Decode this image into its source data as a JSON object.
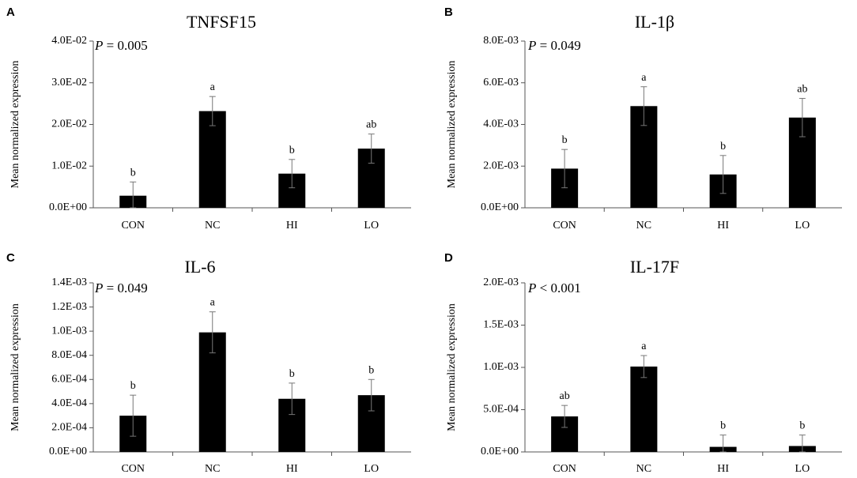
{
  "chart_data": [
    {
      "type": "bar",
      "panel": "A",
      "title": "TNFSF15",
      "pvalue": {
        "symbol": "P",
        "text": " = 0.005"
      },
      "ylabel": "Mean normalized expression",
      "categories": [
        "CON",
        "NC",
        "HI",
        "LO"
      ],
      "values": [
        0.0029,
        0.0232,
        0.0082,
        0.0142
      ],
      "errors": [
        0.0033,
        0.0035,
        0.0034,
        0.0035
      ],
      "significance": [
        "b",
        "a",
        "b",
        "ab"
      ],
      "ylim": [
        0,
        0.04
      ],
      "yticks": [
        0,
        0.01,
        0.02,
        0.03,
        0.04
      ],
      "ytick_labels": [
        "0.0E+00",
        "1.0E-02",
        "2.0E-02",
        "3.0E-02",
        "4.0E-02"
      ]
    },
    {
      "type": "bar",
      "panel": "B",
      "title": "IL-1β",
      "pvalue": {
        "symbol": "P",
        "text": " = 0.049"
      },
      "ylabel": "Mean normalized expression",
      "categories": [
        "CON",
        "NC",
        "HI",
        "LO"
      ],
      "values": [
        0.00188,
        0.00488,
        0.0016,
        0.00433
      ],
      "errors": [
        0.00092,
        0.00093,
        0.00091,
        0.00092
      ],
      "significance": [
        "b",
        "a",
        "b",
        "ab"
      ],
      "ylim": [
        0,
        0.008
      ],
      "yticks": [
        0,
        0.002,
        0.004,
        0.006,
        0.008
      ],
      "ytick_labels": [
        "0.0E+00",
        "2.0E-03",
        "4.0E-03",
        "6.0E-03",
        "8.0E-03"
      ]
    },
    {
      "type": "bar",
      "panel": "C",
      "title": "IL-6",
      "pvalue": {
        "symbol": "P",
        "text": " = 0.049"
      },
      "ylabel": "Mean normalized expression",
      "categories": [
        "CON",
        "NC",
        "HI",
        "LO"
      ],
      "values": [
        0.0003,
        0.00099,
        0.00044,
        0.00047
      ],
      "errors": [
        0.00017,
        0.00017,
        0.00013,
        0.00013
      ],
      "significance": [
        "b",
        "a",
        "b",
        "b"
      ],
      "ylim": [
        0,
        0.0014
      ],
      "yticks": [
        0,
        0.0002,
        0.0004,
        0.0006,
        0.0008,
        0.001,
        0.0012,
        0.0014
      ],
      "ytick_labels": [
        "0.0E+00",
        "2.0E-04",
        "4.0E-04",
        "6.0E-04",
        "8.0E-04",
        "1.0E-03",
        "1.2E-03",
        "1.4E-03"
      ]
    },
    {
      "type": "bar",
      "panel": "D",
      "title": "IL-17F",
      "pvalue": {
        "symbol": "P",
        "text": " < 0.001"
      },
      "ylabel": "Mean normalized expression",
      "categories": [
        "CON",
        "NC",
        "HI",
        "LO"
      ],
      "values": [
        0.00042,
        0.00101,
        6e-05,
        7e-05
      ],
      "errors": [
        0.00013,
        0.00013,
        0.00014,
        0.00013
      ],
      "significance": [
        "ab",
        "a",
        "b",
        "b"
      ],
      "ylim": [
        0,
        0.002
      ],
      "yticks": [
        0,
        0.0005,
        0.001,
        0.0015,
        0.002
      ],
      "ytick_labels": [
        "0.0E+00",
        "5.0E-04",
        "1.0E-03",
        "1.5E-03",
        "2.0E-03"
      ]
    }
  ]
}
